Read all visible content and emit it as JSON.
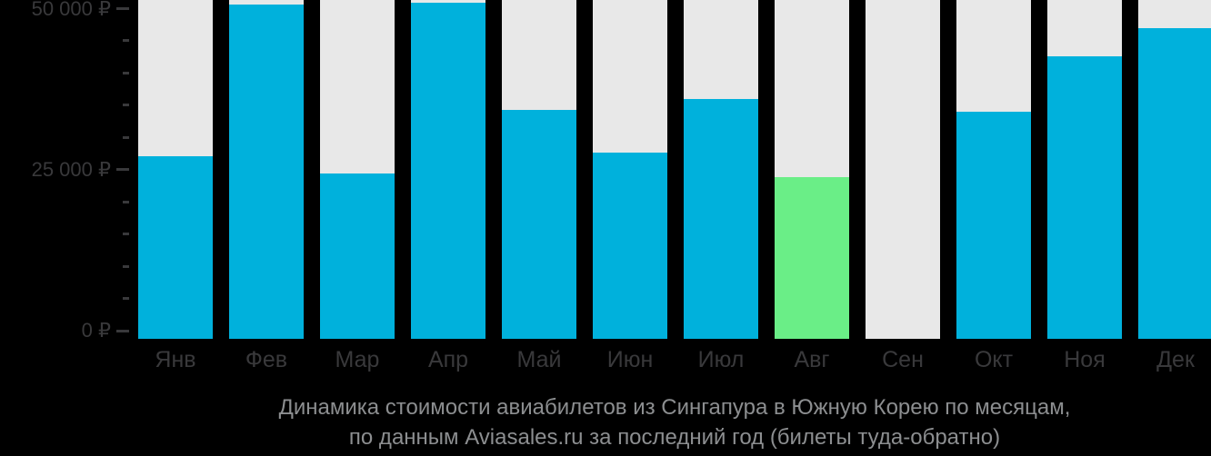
{
  "chart_data": {
    "type": "bar",
    "title": "Динамика стоимости авиабилетов из Сингапура в Южную Корею по месяцам,",
    "subtitle": "по данным Aviasales.ru за последний год (билеты туда-обратно)",
    "currency": "₽",
    "categories": [
      "Янв",
      "Фев",
      "Мар",
      "Апр",
      "Май",
      "Июн",
      "Июл",
      "Авг",
      "Сен",
      "Окт",
      "Ноя",
      "Дек"
    ],
    "values": [
      27100,
      50700,
      24400,
      50900,
      34300,
      27600,
      36000,
      23900,
      null,
      34000,
      42600,
      46900
    ],
    "highlight_index": 7,
    "highlight_month": "Авг",
    "no_data_months": [
      "Сен"
    ],
    "ylim": [
      0,
      50000
    ],
    "y_minor_tick_step": 5000,
    "y_major_ticks": [
      {
        "value": 0,
        "label": "0 ₽"
      },
      {
        "value": 25000,
        "label": "25 000 ₽"
      },
      {
        "value": 50000,
        "label": "50 000 ₽"
      }
    ],
    "grid": false,
    "legend_position": "none",
    "colors": {
      "background": "#000000",
      "bar": "#00b1dc",
      "highlight": "#6aee87",
      "track": "#e8e8e8",
      "axis_text": "#39393b",
      "caption_text": "#8c8e90"
    }
  }
}
